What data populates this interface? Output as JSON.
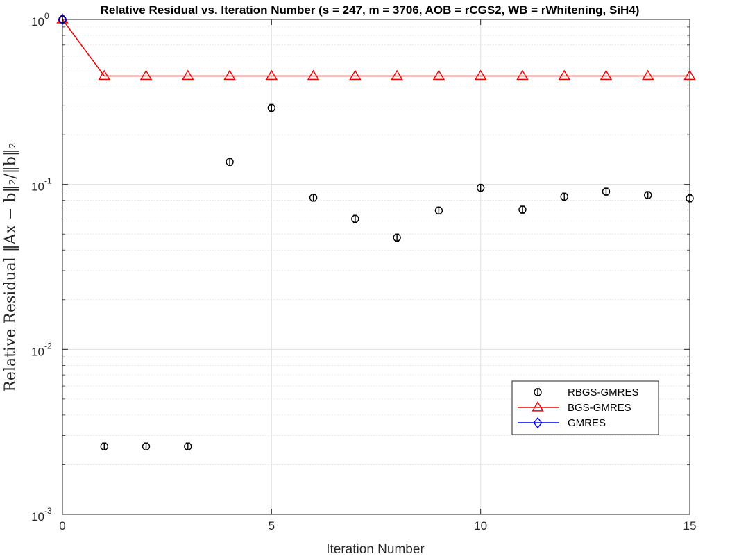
{
  "chart_data": {
    "type": "line",
    "title": "Relative Residual vs. Iteration Number (s = 247, m = 3706, AOB = rCGS2, WB = rWhitening, SiH4)",
    "xlabel": "Iteration Number",
    "ylabel": "Relative Residual ‖Ax − b‖₂/‖b‖₂",
    "xlim": [
      0,
      15
    ],
    "ylim": [
      0.001,
      1
    ],
    "yscale": "log",
    "grid": true,
    "legend_position": "lower-right",
    "x_ticks": [
      {
        "value": 0,
        "label": "0"
      },
      {
        "value": 5,
        "label": "5"
      },
      {
        "value": 10,
        "label": "10"
      },
      {
        "value": 15,
        "label": "15"
      }
    ],
    "y_ticks": [
      {
        "value": 1,
        "base": "10",
        "exp": "0"
      },
      {
        "value": 0.1,
        "base": "10",
        "exp": "-1"
      },
      {
        "value": 0.01,
        "base": "10",
        "exp": "-2"
      },
      {
        "value": 0.001,
        "base": "10",
        "exp": "-3"
      }
    ],
    "series": [
      {
        "name": "RBGS-GMRES",
        "color": "#000000",
        "marker": "circle",
        "line": false,
        "error_bars": true,
        "x": [
          0,
          1,
          2,
          3,
          4,
          5,
          6,
          7,
          8,
          9,
          10,
          11,
          12,
          13,
          14,
          15
        ],
        "y": [
          1.0,
          0.00258,
          0.00258,
          0.00258,
          0.137,
          0.291,
          0.0831,
          0.0618,
          0.0476,
          0.0694,
          0.0953,
          0.0703,
          0.0843,
          0.0904,
          0.0861,
          0.0823
        ]
      },
      {
        "name": "BGS-GMRES",
        "color": "#ee0000",
        "marker": "triangle",
        "line": true,
        "x": [
          0,
          1,
          2,
          3,
          4,
          5,
          6,
          7,
          8,
          9,
          10,
          11,
          12,
          13,
          14,
          15
        ],
        "y": [
          1.0,
          0.454,
          0.454,
          0.454,
          0.454,
          0.454,
          0.454,
          0.454,
          0.454,
          0.454,
          0.454,
          0.454,
          0.454,
          0.454,
          0.454,
          0.454
        ]
      },
      {
        "name": "GMRES",
        "color": "#0000ee",
        "marker": "diamond",
        "line": true,
        "x": [
          0
        ],
        "y": [
          1.0
        ]
      }
    ]
  }
}
